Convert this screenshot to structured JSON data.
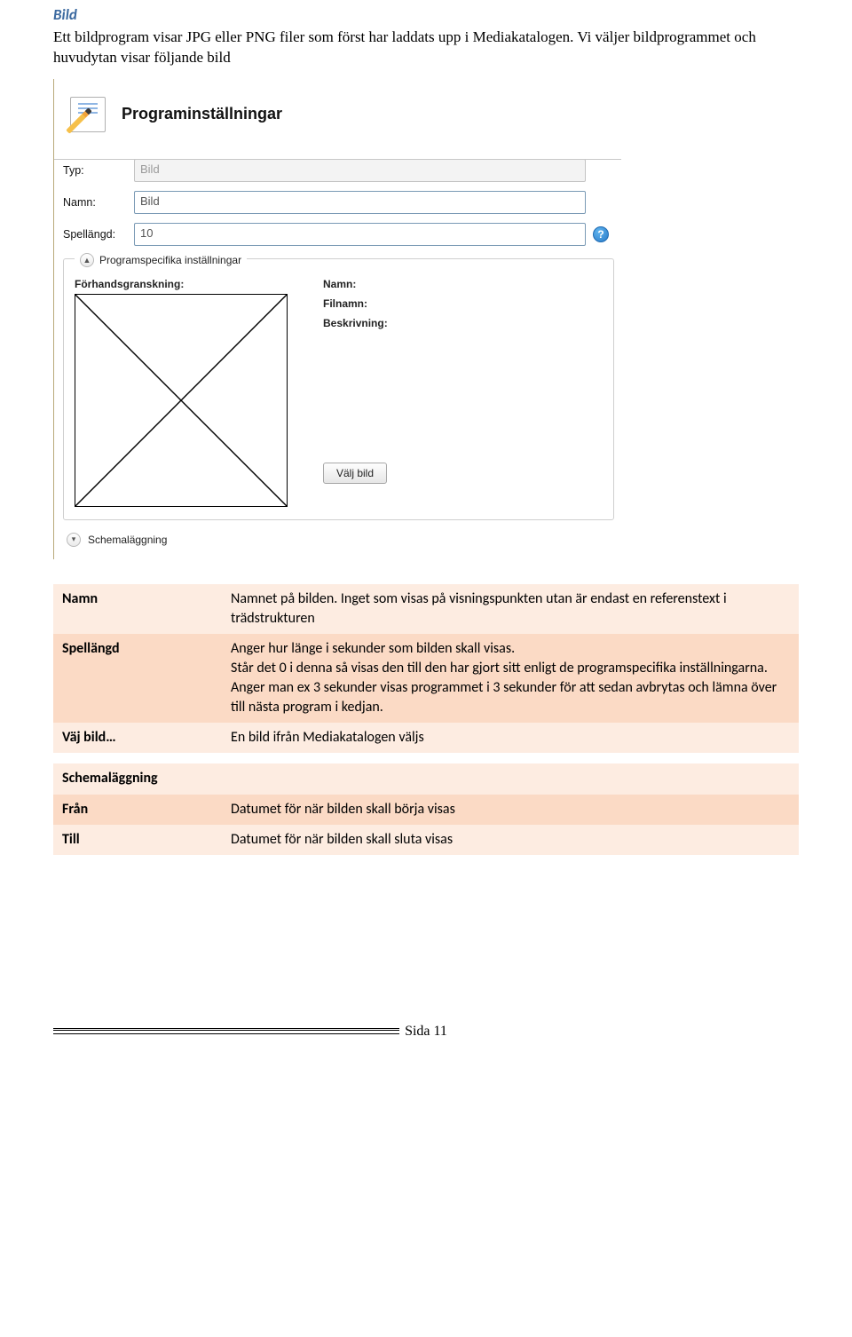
{
  "section_title": "Bild",
  "intro_text": "Ett bildprogram visar JPG eller PNG filer som först har laddats upp i Mediakatalogen. Vi väljer bildprogrammet och huvudytan visar följande bild",
  "panel": {
    "title": "Programinställningar",
    "rows": {
      "typ": {
        "label": "Typ:",
        "value": "Bild",
        "readonly": true
      },
      "namn": {
        "label": "Namn:",
        "value": "Bild"
      },
      "spel": {
        "label": "Spellängd:",
        "value": "10"
      }
    },
    "spec": {
      "legend": "Programspecifika inställningar",
      "preview_label": "Förhandsgranskning:",
      "meta": {
        "namn": "Namn:",
        "filnamn": "Filnamn:",
        "beskriv": "Beskrivning:"
      },
      "choose_btn": "Välj bild"
    },
    "sched_label": "Schemaläggning"
  },
  "desc": {
    "rows": [
      {
        "k": "Namn",
        "v": "Namnet på bilden. Inget som visas på visningspunkten utan är endast en referenstext i trädstrukturen"
      },
      {
        "k": "Spellängd",
        "v": "Anger hur länge i sekunder som bilden skall visas.\nStår det 0 i denna så visas den till den har gjort sitt enligt de programspecifika inställningarna. Anger man ex 3 sekunder visas programmet i 3 sekunder för att sedan avbrytas och lämna över till nästa program i kedjan."
      },
      {
        "k": "Väj bild…",
        "v": "En bild ifrån Mediakatalogen väljs"
      }
    ],
    "rows2": [
      {
        "k": "Schemaläggning",
        "v": ""
      },
      {
        "k": "Från",
        "v": "Datumet för när bilden skall börja visas"
      },
      {
        "k": "Till",
        "v": "Datumet för när bilden skall sluta visas"
      }
    ]
  },
  "page_number": "Sida 11",
  "colors": {
    "heading": "#3c6aa0",
    "row_odd": "#fdece1",
    "row_even": "#fbdac5"
  }
}
